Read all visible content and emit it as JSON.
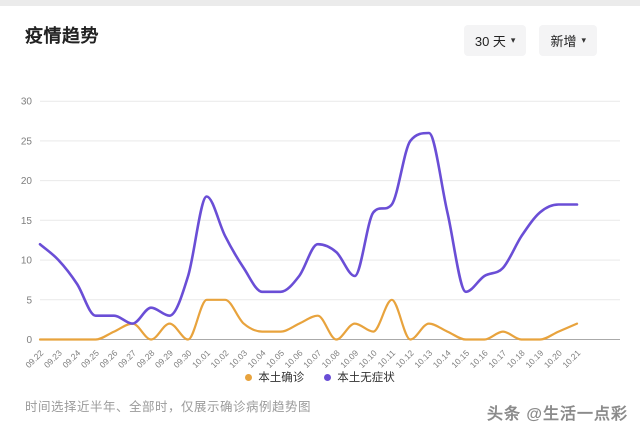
{
  "header": {
    "title": "疫情趋势",
    "range_dropdown": "30 天",
    "mode_dropdown": "新增"
  },
  "icons": {
    "caret_down": "▾"
  },
  "chart_data": {
    "type": "line",
    "smooth": true,
    "grid": true,
    "legend_position": "bottom",
    "x": [
      "09.22",
      "09.23",
      "09.24",
      "09.25",
      "09.26",
      "09.27",
      "09.28",
      "09.29",
      "09.30",
      "10.01",
      "10.02",
      "10.03",
      "10.04",
      "10.05",
      "10.06",
      "10.07",
      "10.08",
      "10.09",
      "10.10",
      "10.11",
      "10.12",
      "10.13",
      "10.14",
      "10.15",
      "10.16",
      "10.17",
      "10.18",
      "10.19",
      "10.20",
      "10.21"
    ],
    "series": [
      {
        "name": "本土确诊",
        "color": "#E8A33D",
        "values": [
          0,
          0,
          0,
          0,
          1,
          2,
          0,
          2,
          0,
          5,
          5,
          2,
          1,
          1,
          2,
          3,
          0,
          2,
          1,
          5,
          0,
          2,
          1,
          0,
          0,
          1,
          0,
          0,
          1,
          2
        ]
      },
      {
        "name": "本土无症状",
        "color": "#6A4ED6",
        "values": [
          12,
          10,
          7,
          3,
          3,
          2,
          4,
          3,
          8,
          18,
          13,
          9,
          6,
          6,
          8,
          12,
          11,
          8,
          16,
          17,
          25,
          26,
          16,
          6,
          8,
          9,
          13,
          16,
          17,
          17
        ]
      }
    ],
    "ylim": [
      0,
      30
    ],
    "yticks": [
      0,
      5,
      10,
      15,
      20,
      25,
      30
    ],
    "xlabel": "",
    "ylabel": ""
  },
  "legend": {
    "items": [
      {
        "label": "本土确诊",
        "color": "#E8A33D"
      },
      {
        "label": "本土无症状",
        "color": "#6A4ED6"
      }
    ]
  },
  "footer": {
    "note": "时间选择近半年、全部时，仅展示确诊病例趋势图"
  },
  "watermark": {
    "text": "头条 @生活一点彩"
  },
  "colors": {
    "grid": "#e9e9e9",
    "axis": "#aaaaaa",
    "tick_label": "#7e7e7e"
  }
}
